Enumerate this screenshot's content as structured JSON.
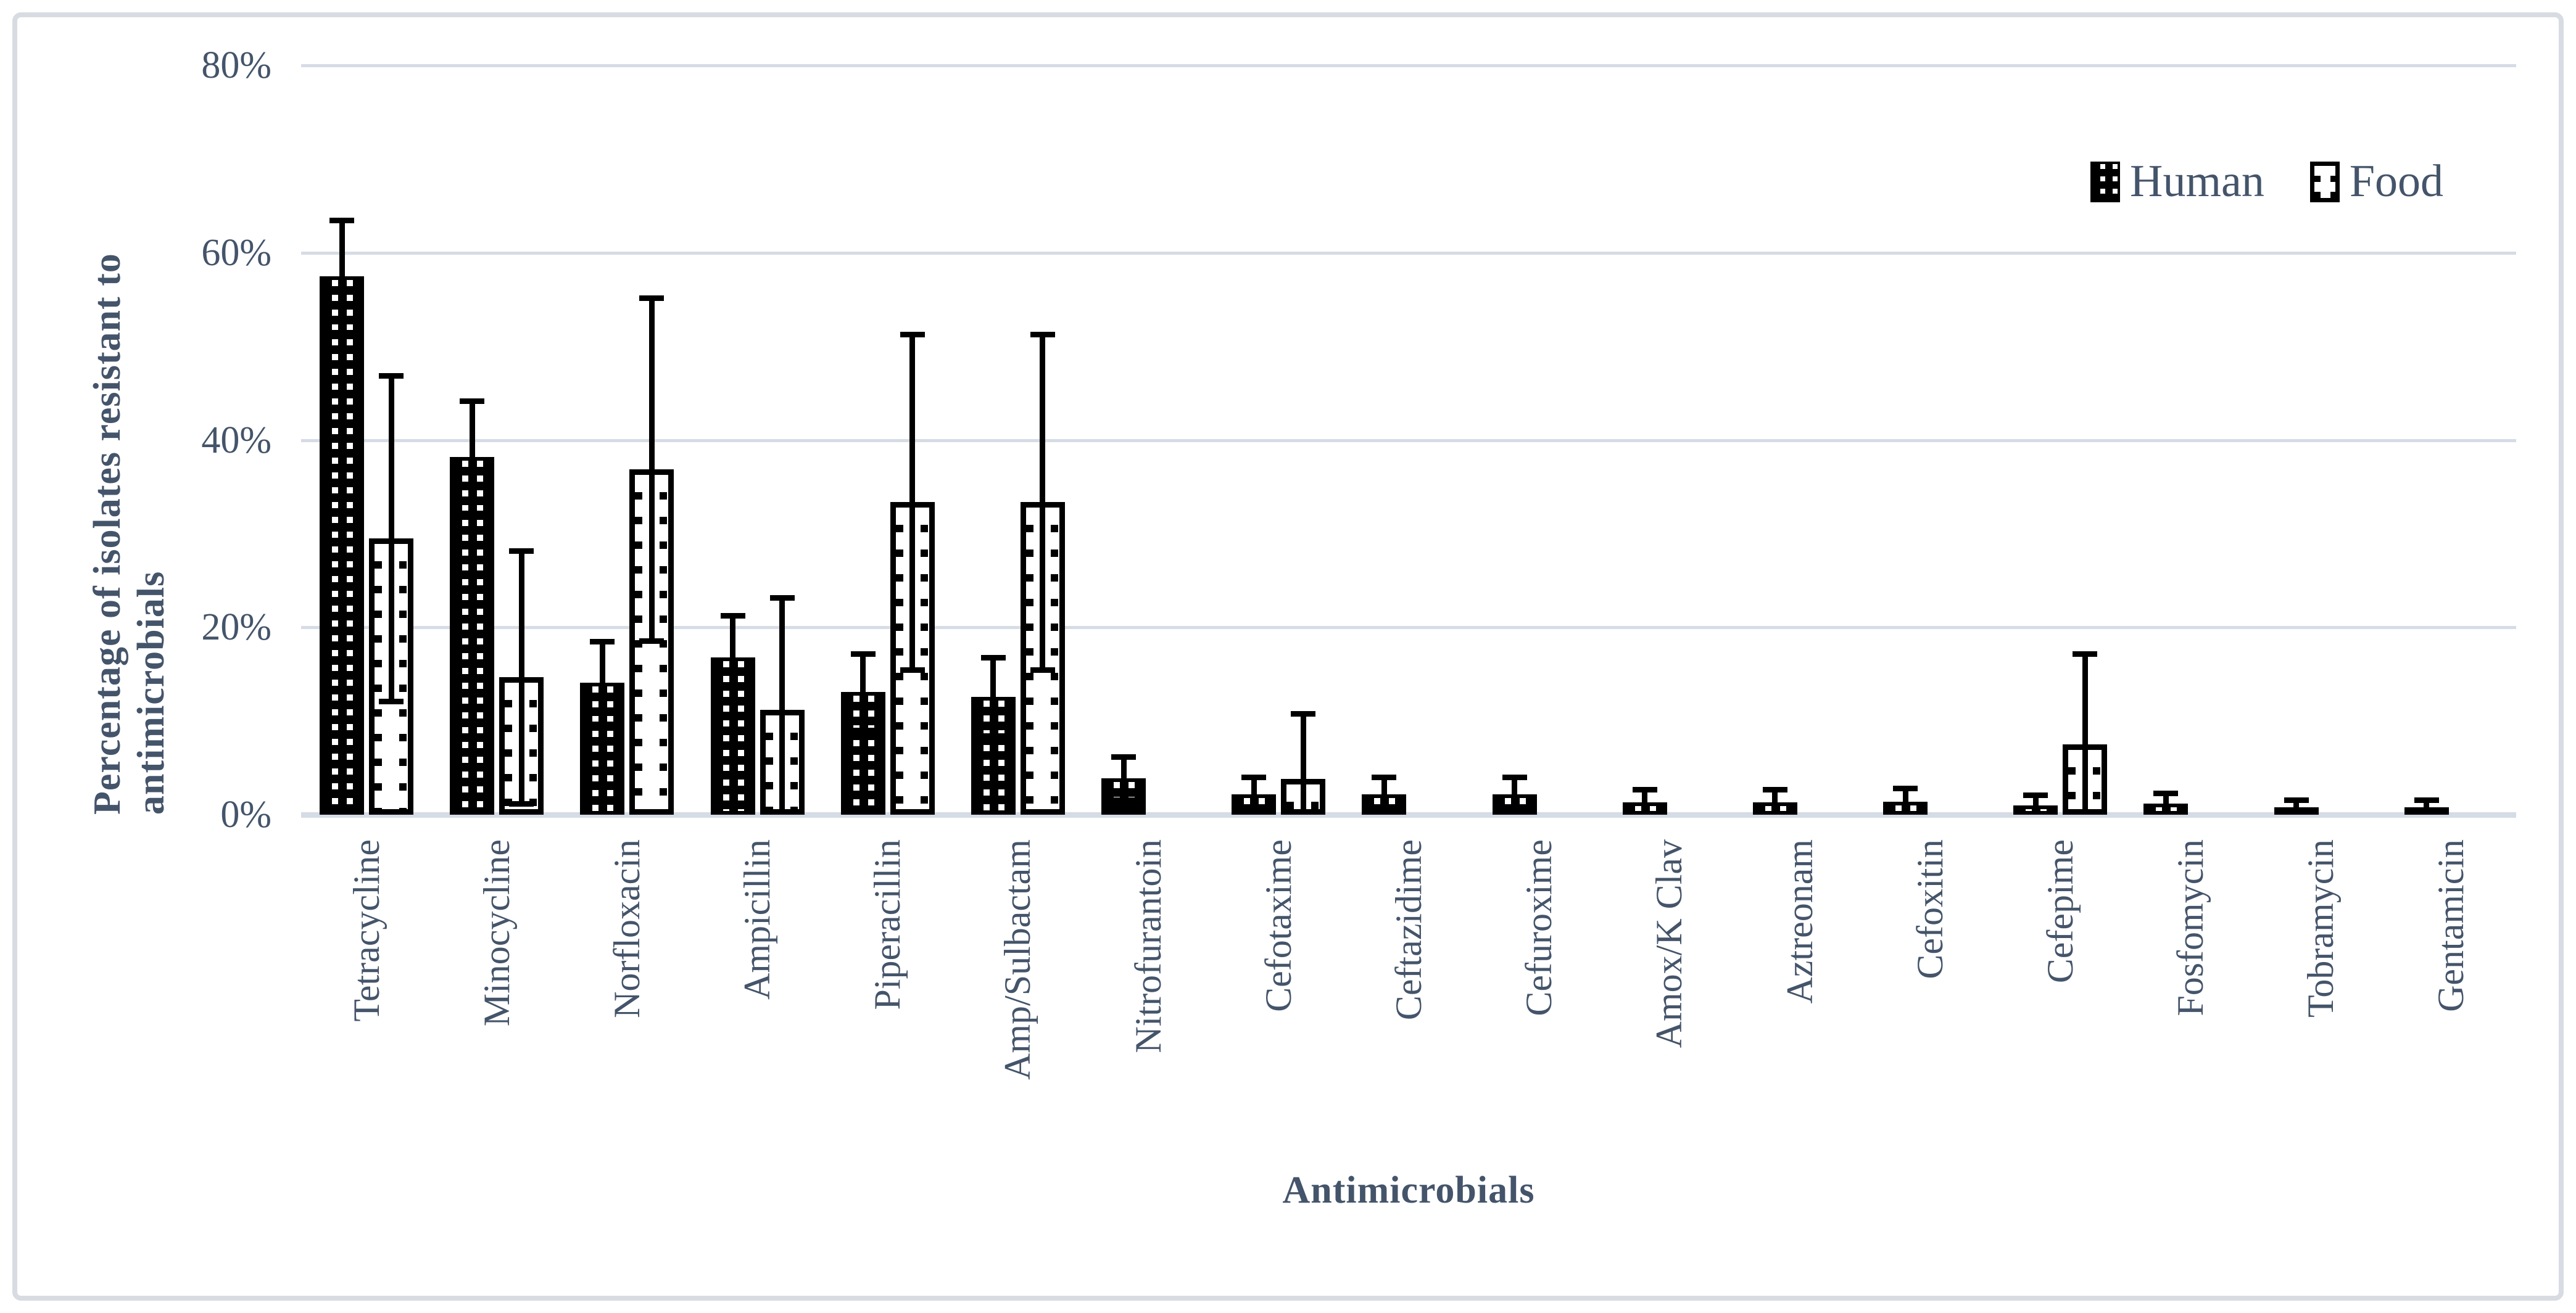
{
  "legend": {
    "items": [
      {
        "label": "Human",
        "pattern": "dense-checker-swatch"
      },
      {
        "label": "Food",
        "pattern": "sparse-dots-swatch"
      }
    ]
  },
  "chart_data": {
    "type": "bar",
    "title": "",
    "xlabel": "Antimicrobials",
    "ylabel": "Percentage of isolates resistant to antimicrobials",
    "ylim": [
      0,
      80
    ],
    "grid": true,
    "legend_position": "top-right",
    "y_ticks": [
      {
        "label": "80%",
        "value": 80
      },
      {
        "label": "60%",
        "value": 60
      },
      {
        "label": "40%",
        "value": 40
      },
      {
        "label": "20%",
        "value": 20
      },
      {
        "label": "0%",
        "value": 0
      }
    ],
    "categories": [
      "Tetracycline",
      "Minocycline",
      "Norfloxacin",
      "Ampicillin",
      "Piperacillin",
      "Amp/Sulbactam",
      "Nitrofurantoin",
      "Cefotaxime",
      "Ceftazidime",
      "Cefuroxime",
      "Amox/K Clav",
      "Aztreonam",
      "Cefoxitin",
      "Cefepime",
      "Fosfomycin",
      "Tobramycin",
      "Gentamicin"
    ],
    "series": [
      {
        "name": "Human",
        "pattern": "dense-checker",
        "values": [
          57.5,
          38.2,
          14.1,
          16.8,
          13.1,
          12.6,
          3.9,
          2.2,
          2.2,
          2.2,
          1.3,
          1.3,
          1.4,
          1.0,
          1.2,
          0.8,
          0.8
        ],
        "errors": [
          6.0,
          6.0,
          4.4,
          4.5,
          4.1,
          4.2,
          2.3,
          1.8,
          1.8,
          1.8,
          1.4,
          1.4,
          1.4,
          1.1,
          1.1,
          0.8,
          0.8
        ]
      },
      {
        "name": "Food",
        "pattern": "sparse-dots",
        "values": [
          29.5,
          14.7,
          36.9,
          11.2,
          33.4,
          33.4,
          0,
          3.8,
          0,
          0,
          0,
          0,
          0,
          7.5,
          0,
          0,
          0
        ],
        "errors": [
          17.4,
          13.5,
          18.3,
          12.0,
          17.9,
          17.9,
          0,
          7.0,
          0,
          0,
          0,
          0,
          0,
          9.7,
          0,
          0,
          0
        ]
      }
    ]
  },
  "colors": {
    "text": "#44546A",
    "gridline": "#D6DCE5",
    "axis_line": "#D6DCE5",
    "frame_border": "#D8DBE2",
    "bar_ink": "#000000",
    "background": "#FFFFFF"
  }
}
